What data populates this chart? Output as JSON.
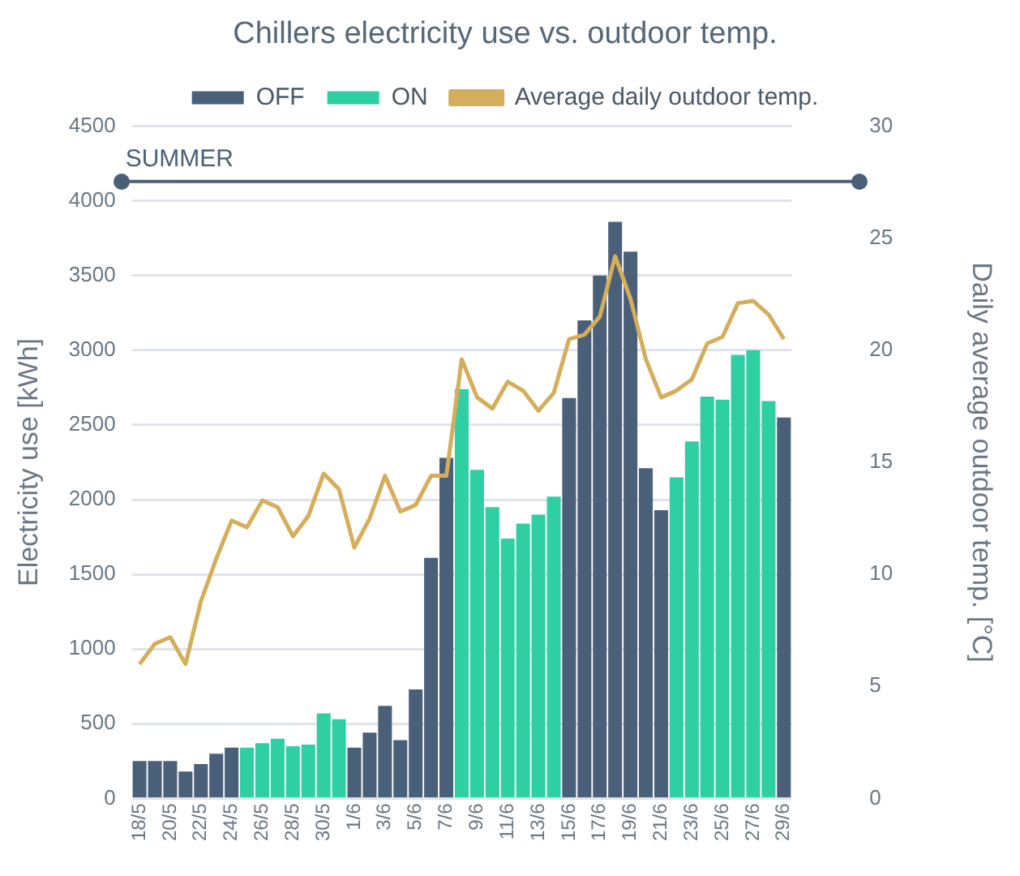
{
  "chart_data": {
    "type": "bar",
    "title": "Chillers electricity use vs. outdoor temp.",
    "ylabel": "Electricity use [kWh]",
    "y2label": "Daily average outdoor temp. [°C]",
    "categories": [
      "18/5",
      null,
      "20/5",
      null,
      "22/5",
      null,
      "24/5",
      null,
      "26/5",
      null,
      "28/5",
      null,
      "30/5",
      null,
      "1/6",
      null,
      "3/6",
      null,
      "5/6",
      null,
      "7/6",
      null,
      "9/6",
      null,
      "11/6",
      null,
      "13/6",
      null,
      "15/6",
      null,
      "17/6",
      null,
      "19/6",
      null,
      "21/6",
      null,
      "23/6",
      null,
      "25/6",
      null,
      "27/6",
      null,
      "29/6"
    ],
    "stacked": true,
    "series": [
      {
        "name": "OFF",
        "color": "#4a6078",
        "values": [
          250,
          250,
          250,
          180,
          230,
          300,
          340,
          null,
          null,
          null,
          null,
          null,
          null,
          null,
          340,
          440,
          620,
          390,
          730,
          1610,
          2280,
          null,
          null,
          null,
          null,
          null,
          null,
          null,
          2680,
          3200,
          3500,
          3860,
          3660,
          2210,
          1930,
          null,
          null,
          null,
          null,
          null,
          null,
          null,
          2550
        ]
      },
      {
        "name": "ON",
        "color": "#2ecfa3",
        "values": [
          null,
          null,
          null,
          null,
          null,
          null,
          null,
          340,
          370,
          400,
          350,
          360,
          570,
          530,
          null,
          null,
          null,
          null,
          null,
          null,
          null,
          2740,
          2200,
          1950,
          1740,
          1840,
          1900,
          2020,
          null,
          null,
          null,
          null,
          null,
          null,
          null,
          2150,
          2390,
          2690,
          2670,
          2970,
          3000,
          2660,
          null
        ]
      },
      {
        "name": "Average daily outdoor temp.",
        "type": "line",
        "axis": "y2",
        "color": "#d4ae5a",
        "values": [
          6.0,
          6.9,
          7.2,
          6.0,
          8.8,
          10.7,
          12.4,
          12.1,
          13.3,
          13.0,
          11.7,
          12.6,
          14.5,
          13.8,
          11.2,
          12.5,
          14.4,
          12.8,
          13.1,
          14.4,
          14.4,
          19.6,
          17.9,
          17.4,
          18.6,
          18.2,
          17.3,
          18.1,
          20.5,
          20.7,
          21.5,
          24.2,
          22.3,
          19.6,
          17.9,
          18.2,
          18.7,
          20.3,
          20.6,
          22.1,
          22.2,
          21.6,
          20.5
        ]
      }
    ],
    "ylim": [
      0,
      4500
    ],
    "yticks": [
      0,
      500,
      1000,
      1500,
      2000,
      2500,
      3000,
      3500,
      4000,
      4500
    ],
    "y2lim": [
      0,
      30
    ],
    "y2ticks": [
      0,
      5,
      10,
      15,
      20,
      25,
      30
    ],
    "ref_lines": [
      {
        "axis": "y",
        "value": 4130,
        "label": "SUMMER",
        "color": "#4a6078"
      }
    ],
    "grid": "y",
    "legend": "top",
    "marker": "none"
  }
}
